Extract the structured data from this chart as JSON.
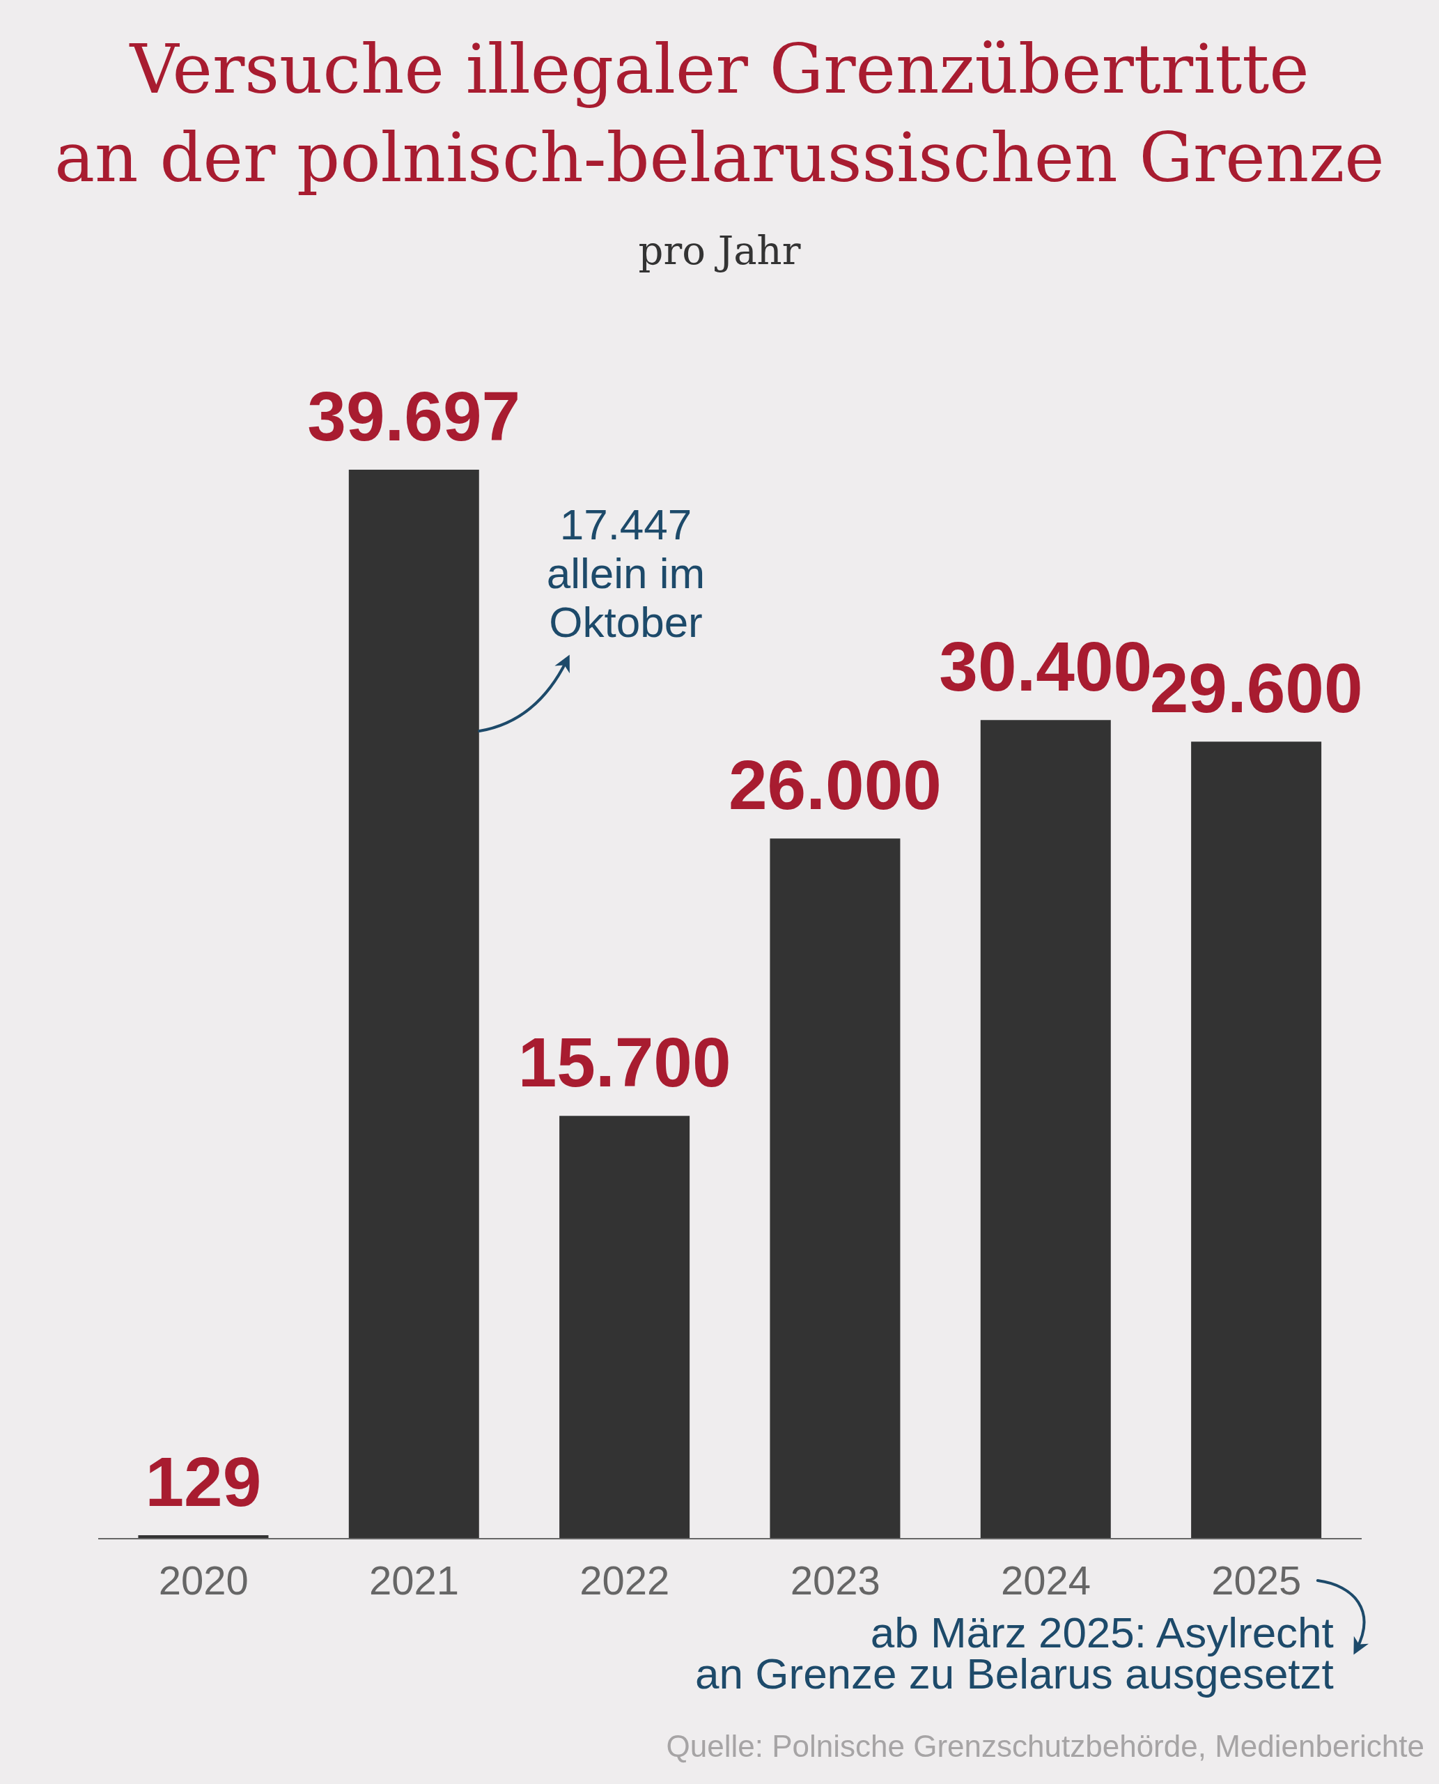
{
  "chart_data": {
    "type": "bar",
    "title": "Versuche illegaler Grenzübertritte\nan der polnisch-belarussischen Grenze",
    "subtitle": "pro Jahr",
    "categories": [
      "2020",
      "2021",
      "2022",
      "2023",
      "2024",
      "2025"
    ],
    "values": [
      129,
      39697,
      15700,
      26000,
      30400,
      29600
    ],
    "value_labels": [
      "129",
      "39.697",
      "15.700",
      "26.000",
      "30.400",
      "29.600"
    ],
    "color": "#333333",
    "tick_labels": "x",
    "annotations": [
      "17.447\nallein im\nOktober",
      "ab März 2025: Asylrecht\nan Grenze zu Belarus ausgesetzt",
      "Quelle: Polnische Grenzschutzbehörde, Medienberichte"
    ]
  }
}
